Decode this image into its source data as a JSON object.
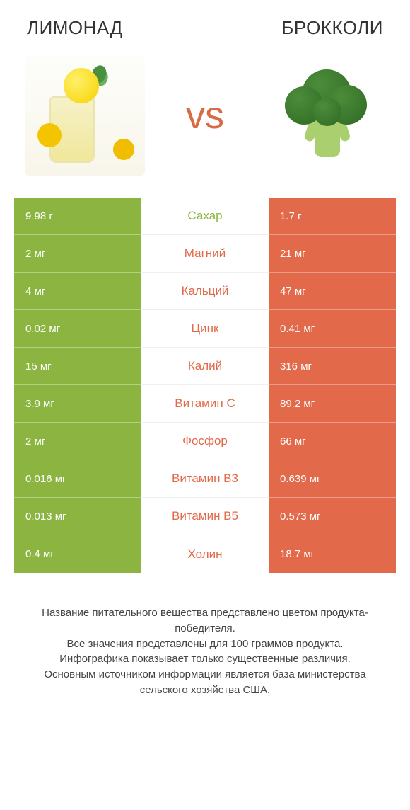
{
  "colors": {
    "green": "#8bb540",
    "orange": "#e2694a",
    "midText_green": "#8bb540",
    "midText_orange": "#e2694a",
    "background": "#ffffff"
  },
  "header": {
    "left_title": "ЛИМОНАД",
    "right_title": "БРОККОЛИ",
    "vs_label": "vs"
  },
  "rows": [
    {
      "nutrient": "Сахар",
      "left": "9.98 г",
      "right": "1.7 г",
      "winner": "left"
    },
    {
      "nutrient": "Магний",
      "left": "2 мг",
      "right": "21 мг",
      "winner": "right"
    },
    {
      "nutrient": "Кальций",
      "left": "4 мг",
      "right": "47 мг",
      "winner": "right"
    },
    {
      "nutrient": "Цинк",
      "left": "0.02 мг",
      "right": "0.41 мг",
      "winner": "right"
    },
    {
      "nutrient": "Калий",
      "left": "15 мг",
      "right": "316 мг",
      "winner": "right"
    },
    {
      "nutrient": "Витамин C",
      "left": "3.9 мг",
      "right": "89.2 мг",
      "winner": "right"
    },
    {
      "nutrient": "Фосфор",
      "left": "2 мг",
      "right": "66 мг",
      "winner": "right"
    },
    {
      "nutrient": "Витамин B3",
      "left": "0.016 мг",
      "right": "0.639 мг",
      "winner": "right"
    },
    {
      "nutrient": "Витамин B5",
      "left": "0.013 мг",
      "right": "0.573 мг",
      "winner": "right"
    },
    {
      "nutrient": "Холин",
      "left": "0.4 мг",
      "right": "18.7 мг",
      "winner": "right"
    }
  ],
  "footer": {
    "line1": "Название питательного вещества представлено цветом продукта-победителя.",
    "line2": "Все значения представлены для 100 граммов продукта.",
    "line3": "Инфографика показывает только существенные различия.",
    "line4": "Основным источником информации является база министерства сельского хозяйства США."
  }
}
